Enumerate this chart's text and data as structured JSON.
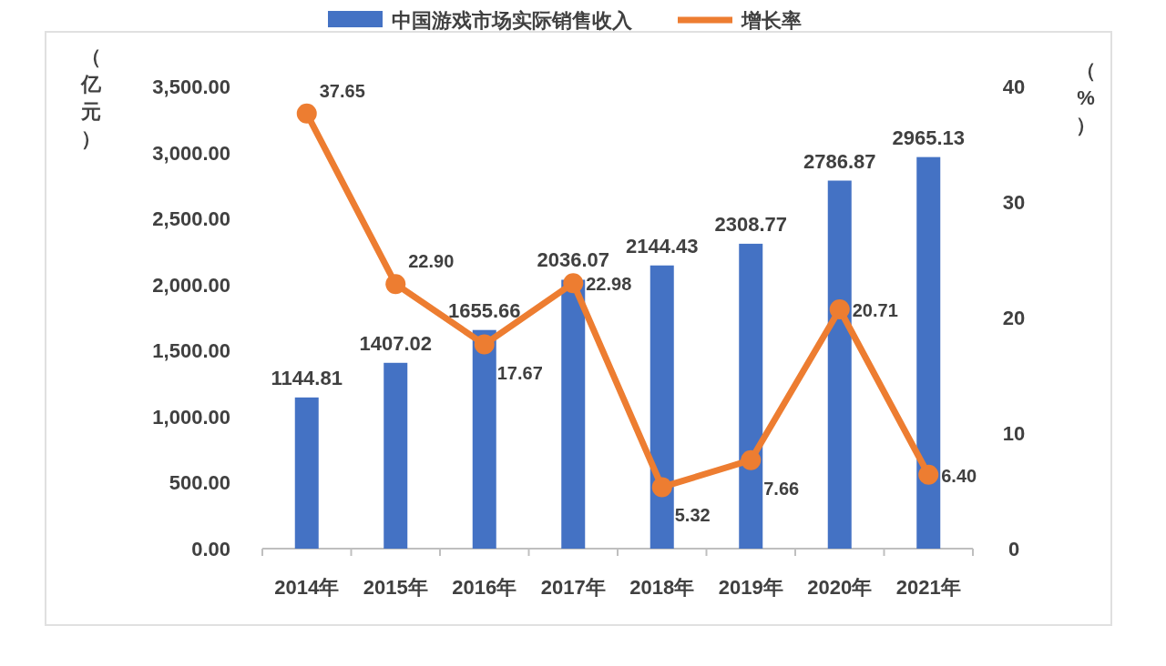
{
  "chart_data": {
    "type": "bar",
    "categories": [
      "2014年",
      "2015年",
      "2016年",
      "2017年",
      "2018年",
      "2019年",
      "2020年",
      "2021年"
    ],
    "ylabel": "（亿元）",
    "y2label": "（%）",
    "ylim": [
      0,
      3500
    ],
    "yticks": [
      {
        "value": 0,
        "label": "0.00"
      },
      {
        "value": 500,
        "label": "500.00"
      },
      {
        "value": 1000,
        "label": "1,000.00"
      },
      {
        "value": 1500,
        "label": "1,500.00"
      },
      {
        "value": 2000,
        "label": "2,000.00"
      },
      {
        "value": 2500,
        "label": "2,500.00"
      },
      {
        "value": 3000,
        "label": "3,000.00"
      },
      {
        "value": 3500,
        "label": "3,500.00"
      }
    ],
    "y2lim": [
      0,
      40
    ],
    "y2ticks": [
      0,
      10,
      20,
      30,
      40
    ],
    "legend": "top",
    "grid": false,
    "series": [
      {
        "name": "中国游戏市场实际销售收入",
        "color": "#4472c4",
        "values": [
          1144.81,
          1407.02,
          1655.66,
          2036.07,
          2144.43,
          2308.77,
          2786.87,
          2965.13
        ],
        "value_labels": [
          "1144.81",
          "1407.02",
          "1655.66",
          "2036.07",
          "2144.43",
          "2308.77",
          "2786.87",
          "2965.13"
        ]
      },
      {
        "name": "增长率",
        "type": "line",
        "axis": "y2",
        "color": "#ed7d31",
        "marker": "circle",
        "values": [
          37.65,
          22.9,
          17.67,
          22.98,
          5.32,
          7.66,
          20.71,
          6.4
        ],
        "value_labels": [
          "37.65",
          "22.90",
          "17.67",
          "22.98",
          "5.32",
          "7.66",
          "20.71",
          "6.40"
        ]
      }
    ]
  }
}
